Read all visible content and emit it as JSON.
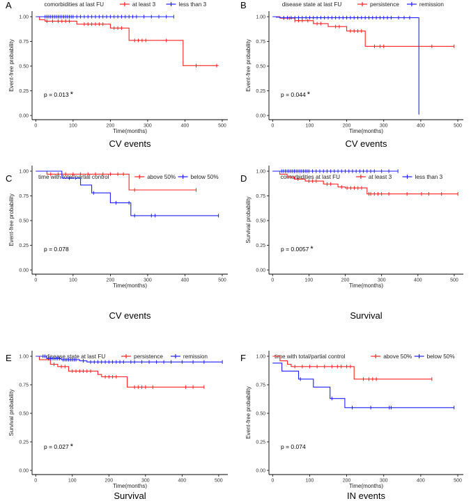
{
  "figure": {
    "colors": {
      "red": "#ff2020",
      "blue": "#1f1fff",
      "axis": "#000000",
      "text": "#222222"
    }
  },
  "chart_data": [
    {
      "panel": "A",
      "type": "line",
      "subtype": "kaplan-meier",
      "title": "CV events",
      "legend_title": "comorbidities at last FU",
      "legend_position": "top",
      "xlabel": "Time(months)",
      "ylabel": "Event-free probability",
      "xlim": [
        -10,
        515
      ],
      "ylim": [
        0,
        1
      ],
      "xticks": [
        0,
        100,
        200,
        300,
        400,
        500
      ],
      "yticks": [
        "0.00",
        "0.25",
        "0.50",
        "0.75",
        "1.00"
      ],
      "pvalue": "p = 0.013",
      "significance": "*",
      "series": [
        {
          "name": "at least 3",
          "color": "#ff2020",
          "steps": [
            [
              0,
              1
            ],
            [
              10,
              0.97
            ],
            [
              25,
              0.955
            ],
            [
              110,
              0.925
            ],
            [
              200,
              0.885
            ],
            [
              250,
              0.76
            ],
            [
              395,
              0.505
            ],
            [
              490,
              0.505
            ]
          ],
          "censor": [
            30,
            45,
            60,
            70,
            80,
            90,
            130,
            140,
            150,
            160,
            170,
            180,
            210,
            220,
            230,
            265,
            275,
            285,
            295,
            350,
            430,
            485
          ]
        },
        {
          "name": "less than 3",
          "color": "#1f1fff",
          "steps": [
            [
              0,
              1
            ],
            [
              370,
              1
            ]
          ],
          "censor": [
            25,
            30,
            35,
            40,
            45,
            50,
            55,
            60,
            65,
            70,
            75,
            80,
            85,
            90,
            95,
            100,
            110,
            120,
            130,
            140,
            150,
            160,
            170,
            180,
            190,
            200,
            210,
            220,
            230,
            240,
            250,
            260,
            270,
            290,
            310,
            330,
            350,
            370
          ]
        }
      ]
    },
    {
      "panel": "B",
      "type": "line",
      "subtype": "kaplan-meier",
      "title": "CV events",
      "legend_title": "disease state at last FU",
      "legend_position": "top",
      "xlabel": "Time(months)",
      "ylabel": "Event-free probability",
      "xlim": [
        -10,
        515
      ],
      "ylim": [
        0,
        1
      ],
      "xticks": [
        0,
        100,
        200,
        300,
        400,
        500
      ],
      "yticks": [
        "0.00",
        "0.25",
        "0.50",
        "0.75",
        "1.00"
      ],
      "pvalue": "p = 0.044",
      "significance": "*",
      "series": [
        {
          "name": "persistence",
          "color": "#ff2020",
          "steps": [
            [
              0,
              1
            ],
            [
              20,
              0.985
            ],
            [
              60,
              0.96
            ],
            [
              110,
              0.93
            ],
            [
              150,
              0.9
            ],
            [
              200,
              0.855
            ],
            [
              250,
              0.7
            ],
            [
              490,
              0.7
            ]
          ],
          "censor": [
            30,
            45,
            60,
            70,
            80,
            95,
            120,
            130,
            170,
            180,
            210,
            220,
            230,
            240,
            275,
            290,
            300,
            430,
            490
          ]
        },
        {
          "name": "remission",
          "color": "#1f1fff",
          "steps": [
            [
              0,
              1
            ],
            [
              10,
              0.995
            ],
            [
              20,
              0.99
            ],
            [
              395,
              0.99
            ],
            [
              395,
              0.01
            ]
          ],
          "censor": [
            30,
            40,
            50,
            60,
            70,
            80,
            90,
            100,
            110,
            120,
            130,
            140,
            150,
            160,
            170,
            180,
            190,
            200,
            210,
            220,
            230,
            240,
            250,
            260,
            270,
            280,
            290,
            300,
            310,
            320,
            340,
            355,
            370
          ]
        }
      ]
    },
    {
      "panel": "C",
      "type": "line",
      "subtype": "kaplan-meier",
      "title": "CV events",
      "legend_title": "time with total/partial control",
      "legend_position": "top",
      "xlabel": "Time(months)",
      "ylabel": "Event-free probability",
      "xlim": [
        -10,
        515
      ],
      "ylim": [
        0,
        1
      ],
      "xticks": [
        0,
        100,
        200,
        300,
        400,
        500
      ],
      "yticks": [
        "0.00",
        "0.25",
        "0.50",
        "0.75",
        "1.00"
      ],
      "pvalue": "p = 0.078",
      "significance": "",
      "series": [
        {
          "name": "above 50%",
          "color": "#ff2020",
          "steps": [
            [
              0,
              1
            ],
            [
              30,
              0.97
            ],
            [
              250,
              0.81
            ],
            [
              430,
              0.81
            ]
          ],
          "censor": [
            40,
            60,
            80,
            100,
            120,
            140,
            160,
            180,
            200,
            220,
            235,
            265,
            430
          ]
        },
        {
          "name": "below 50%",
          "color": "#1f1fff",
          "steps": [
            [
              0,
              1
            ],
            [
              70,
              0.93
            ],
            [
              120,
              0.86
            ],
            [
              150,
              0.78
            ],
            [
              200,
              0.68
            ],
            [
              255,
              0.55
            ],
            [
              490,
              0.55
            ]
          ],
          "censor": [
            90,
            155,
            215,
            250,
            265,
            310,
            320,
            490
          ]
        }
      ]
    },
    {
      "panel": "D",
      "type": "line",
      "subtype": "kaplan-meier",
      "title": "Survival",
      "legend_title": "comorbidities at last FU",
      "legend_position": "top",
      "xlabel": "Time(months)",
      "ylabel": "Survival probability",
      "xlim": [
        -10,
        525
      ],
      "ylim": [
        0,
        1
      ],
      "xticks": [
        0,
        100,
        200,
        300,
        400,
        500
      ],
      "yticks": [
        "0.00",
        "0.25",
        "0.50",
        "0.75",
        "1.00"
      ],
      "pvalue": "p = 0.0057",
      "significance": "*",
      "series": [
        {
          "name": "at least 3",
          "color": "#ff2020",
          "steps": [
            [
              0,
              1
            ],
            [
              20,
              0.97
            ],
            [
              40,
              0.94
            ],
            [
              60,
              0.92
            ],
            [
              90,
              0.9
            ],
            [
              140,
              0.87
            ],
            [
              180,
              0.84
            ],
            [
              200,
              0.83
            ],
            [
              260,
              0.77
            ],
            [
              510,
              0.77
            ]
          ],
          "censor": [
            50,
            70,
            100,
            110,
            120,
            150,
            160,
            190,
            205,
            215,
            225,
            235,
            245,
            265,
            270,
            280,
            290,
            300,
            320,
            370,
            410,
            430,
            465,
            510
          ]
        },
        {
          "name": "less than 3",
          "color": "#1f1fff",
          "steps": [
            [
              0,
              1
            ],
            [
              345,
              1
            ]
          ],
          "censor": [
            25,
            30,
            35,
            40,
            45,
            50,
            55,
            60,
            65,
            70,
            75,
            80,
            85,
            90,
            95,
            100,
            110,
            120,
            130,
            140,
            150,
            160,
            170,
            180,
            190,
            200,
            210,
            220,
            230,
            240,
            250,
            260,
            270,
            280,
            300,
            320,
            345
          ]
        }
      ]
    },
    {
      "panel": "E",
      "type": "line",
      "subtype": "kaplan-meier",
      "title": "Survival",
      "legend_title": "disease state at last FU",
      "legend_position": "top",
      "xlabel": "Time(months)",
      "ylabel": "Survival probability",
      "xlim": [
        -10,
        525
      ],
      "ylim": [
        0,
        1
      ],
      "xticks": [
        0,
        100,
        200,
        300,
        400,
        500
      ],
      "yticks": [
        "0.00",
        "0.25",
        "0.50",
        "0.75",
        "1.00"
      ],
      "pvalue": "p = 0.027",
      "significance": "*",
      "series": [
        {
          "name": "persistence",
          "color": "#ff2020",
          "steps": [
            [
              0,
              1
            ],
            [
              10,
              0.97
            ],
            [
              40,
              0.93
            ],
            [
              60,
              0.91
            ],
            [
              90,
              0.87
            ],
            [
              170,
              0.84
            ],
            [
              180,
              0.82
            ],
            [
              250,
              0.73
            ],
            [
              460,
              0.73
            ]
          ],
          "censor": [
            50,
            70,
            80,
            100,
            110,
            120,
            130,
            140,
            150,
            190,
            200,
            210,
            220,
            270,
            280,
            290,
            300,
            320,
            410,
            430,
            460
          ]
        },
        {
          "name": "remission",
          "color": "#1f1fff",
          "steps": [
            [
              0,
              1
            ],
            [
              30,
              0.98
            ],
            [
              70,
              0.97
            ],
            [
              120,
              0.96
            ],
            [
              140,
              0.95
            ],
            [
              510,
              0.95
            ]
          ],
          "censor": [
            20,
            25,
            35,
            40,
            45,
            50,
            55,
            60,
            65,
            75,
            80,
            85,
            90,
            95,
            100,
            105,
            110,
            130,
            150,
            160,
            170,
            180,
            190,
            200,
            210,
            220,
            230,
            240,
            260,
            270,
            290,
            310,
            330,
            350,
            370,
            400,
            430,
            460,
            510
          ]
        }
      ]
    },
    {
      "panel": "F",
      "type": "line",
      "subtype": "kaplan-meier",
      "title": "IN events",
      "legend_title": "time with total/partial control",
      "legend_position": "top",
      "xlabel": "Time(months)",
      "ylabel": "Event-free probability",
      "xlim": [
        -10,
        515
      ],
      "ylim": [
        0,
        1
      ],
      "xticks": [
        0,
        100,
        200,
        300,
        400,
        500
      ],
      "yticks": [
        "0.00",
        "0.25",
        "0.50",
        "0.75",
        "1.00"
      ],
      "pvalue": "p = 0.074",
      "significance": "",
      "series": [
        {
          "name": "above 50%",
          "color": "#ff2020",
          "steps": [
            [
              0,
              1
            ],
            [
              20,
              0.96
            ],
            [
              40,
              0.93
            ],
            [
              50,
              0.91
            ],
            [
              220,
              0.8
            ],
            [
              430,
              0.8
            ]
          ],
          "censor": [
            60,
            80,
            100,
            120,
            140,
            160,
            175,
            185,
            200,
            210,
            245,
            260,
            270,
            280,
            430
          ]
        },
        {
          "name": "below 50%",
          "color": "#1f1fff",
          "steps": [
            [
              0,
              0.94
            ],
            [
              25,
              0.87
            ],
            [
              70,
              0.8
            ],
            [
              110,
              0.73
            ],
            [
              155,
              0.63
            ],
            [
              195,
              0.55
            ],
            [
              490,
              0.55
            ]
          ],
          "censor": [
            75,
            160,
            215,
            265,
            315,
            320,
            490
          ]
        }
      ]
    }
  ]
}
